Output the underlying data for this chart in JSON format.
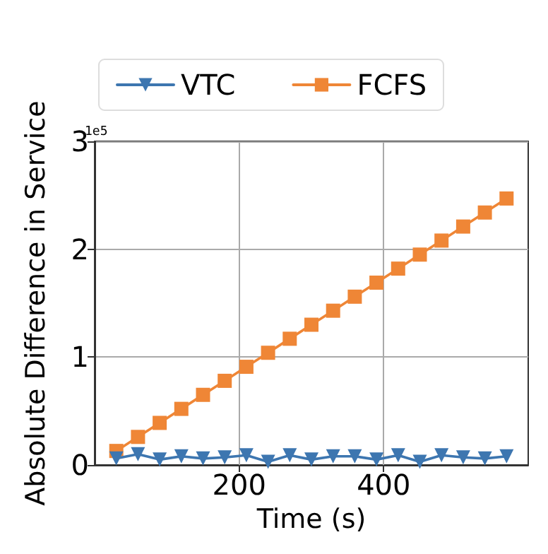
{
  "chart_data": {
    "type": "line",
    "xlabel": "Time (s)",
    "ylabel": "Absolute Difference in Service",
    "annotations": [
      "1e5"
    ],
    "x": [
      30,
      60,
      90,
      120,
      150,
      180,
      210,
      240,
      270,
      300,
      330,
      360,
      390,
      420,
      450,
      480,
      510,
      540,
      570
    ],
    "series": [
      {
        "name": "VTC",
        "color": "#3d76b0",
        "marker": "triangle",
        "values": [
          0.06,
          0.1,
          0.05,
          0.08,
          0.06,
          0.07,
          0.09,
          0.03,
          0.09,
          0.05,
          0.08,
          0.08,
          0.05,
          0.09,
          0.03,
          0.09,
          0.07,
          0.06,
          0.08
        ]
      },
      {
        "name": "FCFS",
        "color": "#ef8636",
        "marker": "square",
        "values": [
          0.13,
          0.26,
          0.39,
          0.52,
          0.65,
          0.78,
          0.91,
          1.04,
          1.17,
          1.3,
          1.43,
          1.56,
          1.69,
          1.82,
          1.95,
          2.08,
          2.21,
          2.34,
          2.47
        ]
      }
    ],
    "xlim": [
      0,
      600
    ],
    "xticks": [
      200,
      400
    ],
    "ylim": [
      0,
      3
    ],
    "yticks": [
      0,
      1,
      2,
      3
    ],
    "grid": true,
    "legend": "top"
  }
}
